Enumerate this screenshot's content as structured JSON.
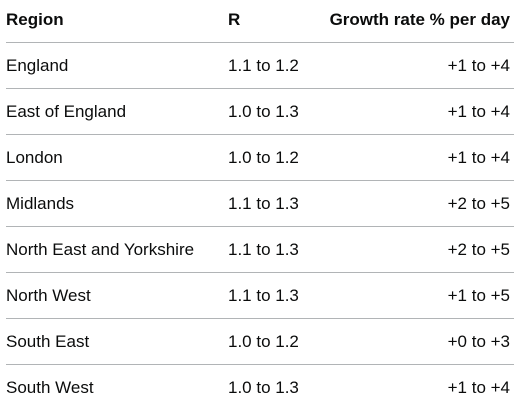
{
  "table": {
    "headers": {
      "region": "Region",
      "r": "R",
      "growth": "Growth rate % per day"
    },
    "rows": [
      {
        "region": "England",
        "r": "1.1 to 1.2",
        "growth": "+1 to +4"
      },
      {
        "region": "East of England",
        "r": "1.0 to 1.3",
        "growth": "+1 to +4"
      },
      {
        "region": "London",
        "r": "1.0 to 1.2",
        "growth": "+1 to +4"
      },
      {
        "region": "Midlands",
        "r": "1.1 to 1.3",
        "growth": "+2 to +5"
      },
      {
        "region": "North East and Yorkshire",
        "r": "1.1 to 1.3",
        "growth": "+2 to +5"
      },
      {
        "region": "North West",
        "r": "1.1 to 1.3",
        "growth": "+1 to +5"
      },
      {
        "region": "South East",
        "r": "1.0 to 1.2",
        "growth": "+0 to +3"
      },
      {
        "region": "South West",
        "r": "1.0 to 1.3",
        "growth": "+1 to +4"
      }
    ]
  }
}
